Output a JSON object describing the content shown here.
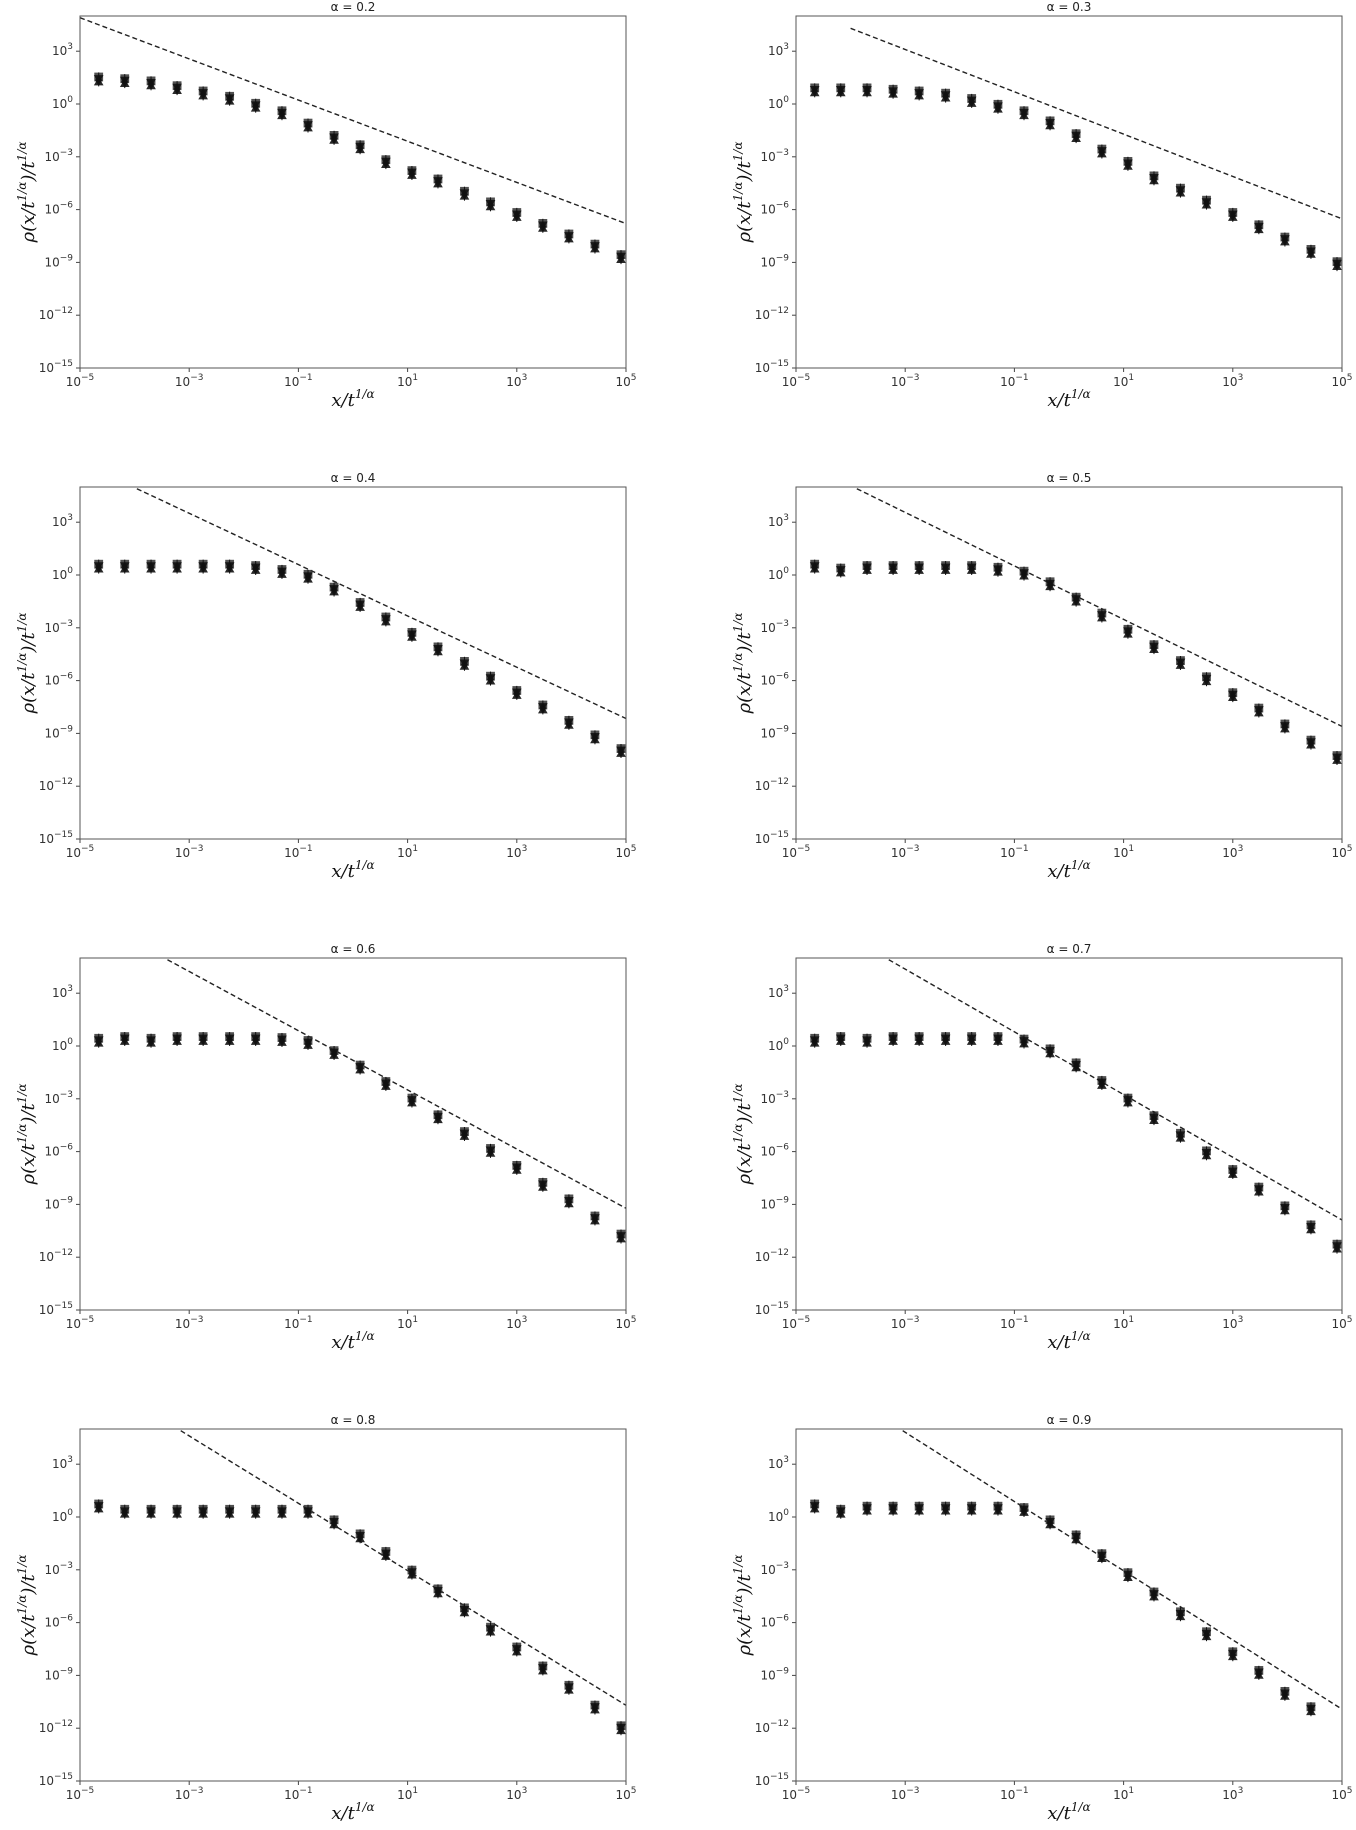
{
  "chart_data": [
    {
      "type": "scatter",
      "title": "α = 0.2",
      "xlabel": "x/t^{1/α}",
      "ylabel": "ρ(x/t^{1/α})/t^{1/α}",
      "xscale": "log",
      "yscale": "log",
      "xlim": [
        1e-05,
        100000.0
      ],
      "ylim": [
        1e-15,
        100000.0
      ],
      "xticks": [
        "10^{-5}",
        "10^{-3}",
        "10^{-1}",
        "10^{1}",
        "10^{3}",
        "10^{5}"
      ],
      "yticks": [
        "10^{-15}",
        "10^{-12}",
        "10^{-9}",
        "10^{-6}",
        "10^{-3}",
        "10^{0}",
        "10^{3}"
      ],
      "grid": false,
      "reference_line": {
        "style": "dashed",
        "x": [
          1e-05,
          100000.0
        ],
        "y": [
          80000,
          1.6e-07
        ]
      },
      "points": {
        "x": [
          2.2e-05,
          6.6e-05,
          0.0002,
          0.0006,
          0.0018,
          0.0055,
          0.0165,
          0.05,
          0.15,
          0.45,
          1.35,
          4,
          12,
          36,
          110,
          330,
          1000,
          3000,
          9000,
          27000,
          81000
        ],
        "y": [
          25,
          20,
          15,
          8,
          4,
          2,
          0.8,
          0.3,
          0.06,
          0.012,
          0.0035,
          0.0005,
          0.00012,
          4e-05,
          8e-06,
          2e-06,
          5e-07,
          1.2e-07,
          3e-08,
          8e-09,
          2e-09
        ]
      }
    },
    {
      "type": "scatter",
      "title": "α = 0.3",
      "xlabel": "x/t^{1/α}",
      "ylabel": "ρ(x/t^{1/α})/t^{1/α}",
      "xscale": "log",
      "yscale": "log",
      "xlim": [
        1e-05,
        100000.0
      ],
      "ylim": [
        1e-15,
        100000.0
      ],
      "xticks": [
        "10^{-5}",
        "10^{-3}",
        "10^{-1}",
        "10^{1}",
        "10^{3}",
        "10^{5}"
      ],
      "yticks": [
        "10^{-15}",
        "10^{-12}",
        "10^{-9}",
        "10^{-6}",
        "10^{-3}",
        "10^{0}",
        "10^{3}"
      ],
      "grid": false,
      "reference_line": {
        "style": "dashed",
        "x": [
          0.0001,
          100000.0
        ],
        "y": [
          20000,
          3e-07
        ]
      },
      "points": {
        "x": [
          2.2e-05,
          6.6e-05,
          0.0002,
          0.0006,
          0.0018,
          0.0055,
          0.0165,
          0.05,
          0.15,
          0.45,
          1.35,
          4,
          12,
          36,
          110,
          330,
          1000,
          3000,
          9000,
          27000,
          81000
        ],
        "y": [
          6,
          6,
          6,
          5,
          4,
          3,
          1.5,
          0.7,
          0.3,
          0.08,
          0.015,
          0.002,
          0.0004,
          6e-05,
          1.2e-05,
          2.5e-06,
          5e-07,
          1e-07,
          2e-08,
          4e-09,
          8e-10
        ]
      }
    },
    {
      "type": "scatter",
      "title": "α = 0.4",
      "xlabel": "x/t^{1/α}",
      "ylabel": "ρ(x/t^{1/α})/t^{1/α}",
      "xscale": "log",
      "yscale": "log",
      "xlim": [
        1e-05,
        100000.0
      ],
      "ylim": [
        1e-15,
        100000.0
      ],
      "xticks": [
        "10^{-5}",
        "10^{-3}",
        "10^{-1}",
        "10^{1}",
        "10^{3}",
        "10^{5}"
      ],
      "yticks": [
        "10^{-15}",
        "10^{-12}",
        "10^{-9}",
        "10^{-6}",
        "10^{-3}",
        "10^{0}",
        "10^{3}"
      ],
      "grid": false,
      "reference_line": {
        "style": "dashed",
        "x": [
          0.00011,
          100000.0
        ],
        "y": [
          80000,
          7e-09
        ]
      },
      "points": {
        "x": [
          2.2e-05,
          6.6e-05,
          0.0002,
          0.0006,
          0.0018,
          0.0055,
          0.0165,
          0.05,
          0.15,
          0.45,
          1.35,
          4,
          12,
          36,
          110,
          330,
          1000,
          3000,
          9000,
          27000,
          81000
        ],
        "y": [
          3,
          3,
          3,
          3,
          3,
          3,
          2.5,
          1.5,
          0.8,
          0.15,
          0.02,
          0.003,
          0.0004,
          6e-05,
          9e-06,
          1.3e-06,
          2e-07,
          3e-08,
          4e-09,
          6e-10,
          1e-10
        ]
      }
    },
    {
      "type": "scatter",
      "title": "α = 0.5",
      "xlabel": "x/t^{1/α}",
      "ylabel": "ρ(x/t^{1/α})/t^{1/α}",
      "xscale": "log",
      "yscale": "log",
      "xlim": [
        1e-05,
        100000.0
      ],
      "ylim": [
        1e-15,
        100000.0
      ],
      "xticks": [
        "10^{-5}",
        "10^{-3}",
        "10^{-1}",
        "10^{1}",
        "10^{3}",
        "10^{5}"
      ],
      "yticks": [
        "10^{-15}",
        "10^{-12}",
        "10^{-9}",
        "10^{-6}",
        "10^{-3}",
        "10^{0}",
        "10^{3}"
      ],
      "grid": false,
      "reference_line": {
        "style": "dashed",
        "x": [
          0.00013,
          100000.0
        ],
        "y": [
          80000,
          2.5e-09
        ]
      },
      "points": {
        "x": [
          2.2e-05,
          6.6e-05,
          0.0002,
          0.0006,
          0.0018,
          0.0055,
          0.0165,
          0.05,
          0.15,
          0.45,
          1.35,
          4,
          12,
          36,
          110,
          330,
          1000,
          3000,
          9000,
          27000,
          81000
        ],
        "y": [
          3,
          1.8,
          2.5,
          2.5,
          2.5,
          2.5,
          2.5,
          2,
          1.2,
          0.3,
          0.04,
          0.005,
          0.0006,
          8e-05,
          1e-05,
          1.2e-06,
          1.5e-07,
          2e-08,
          2.5e-09,
          3e-10,
          4e-11
        ]
      }
    },
    {
      "type": "scatter",
      "title": "α = 0.6",
      "xlabel": "x/t^{1/α}",
      "ylabel": "ρ(x/t^{1/α})/t^{1/α}",
      "xscale": "log",
      "yscale": "log",
      "xlim": [
        1e-05,
        100000.0
      ],
      "ylim": [
        1e-15,
        100000.0
      ],
      "xticks": [
        "10^{-5}",
        "10^{-3}",
        "10^{-1}",
        "10^{1}",
        "10^{3}",
        "10^{5}"
      ],
      "yticks": [
        "10^{-15}",
        "10^{-12}",
        "10^{-9}",
        "10^{-6}",
        "10^{-3}",
        "10^{0}",
        "10^{3}"
      ],
      "grid": false,
      "reference_line": {
        "style": "dashed",
        "x": [
          0.0004,
          100000.0
        ],
        "y": [
          80000,
          6e-10
        ]
      },
      "points": {
        "x": [
          2.2e-05,
          6.6e-05,
          0.0002,
          0.0006,
          0.0018,
          0.0055,
          0.0165,
          0.05,
          0.15,
          0.45,
          1.35,
          4,
          12,
          36,
          110,
          330,
          1000,
          3000,
          9000,
          27000,
          81000
        ],
        "y": [
          2,
          2.5,
          2,
          2.5,
          2.5,
          2.5,
          2.5,
          2.2,
          1.5,
          0.4,
          0.06,
          0.007,
          0.0008,
          9e-05,
          1e-05,
          1.1e-06,
          1.2e-07,
          1.3e-08,
          1.5e-09,
          1.6e-10,
          1.5e-11
        ]
      }
    },
    {
      "type": "scatter",
      "title": "α = 0.7",
      "xlabel": "x/t^{1/α}",
      "ylabel": "ρ(x/t^{1/α})/t^{1/α}",
      "xscale": "log",
      "yscale": "log",
      "xlim": [
        1e-05,
        100000.0
      ],
      "ylim": [
        1e-15,
        100000.0
      ],
      "xticks": [
        "10^{-5}",
        "10^{-3}",
        "10^{-1}",
        "10^{1}",
        "10^{3}",
        "10^{5}"
      ],
      "yticks": [
        "10^{-15}",
        "10^{-12}",
        "10^{-9}",
        "10^{-6}",
        "10^{-3}",
        "10^{0}",
        "10^{3}"
      ],
      "grid": false,
      "reference_line": {
        "style": "dashed",
        "x": [
          0.0005,
          100000.0
        ],
        "y": [
          80000,
          1.3e-10
        ]
      },
      "points": {
        "x": [
          2.2e-05,
          6.6e-05,
          0.0002,
          0.0006,
          0.0018,
          0.0055,
          0.0165,
          0.05,
          0.15,
          0.45,
          1.35,
          4,
          12,
          36,
          110,
          330,
          1000,
          3000,
          9000,
          27000,
          81000
        ],
        "y": [
          2,
          2.5,
          2,
          2.5,
          2.5,
          2.5,
          2.5,
          2.5,
          1.8,
          0.5,
          0.08,
          0.008,
          0.0008,
          8e-05,
          8e-06,
          8e-07,
          7e-08,
          7e-09,
          6e-10,
          5e-11,
          4e-12
        ]
      }
    },
    {
      "type": "scatter",
      "title": "α = 0.8",
      "xlabel": "x/t^{1/α}",
      "ylabel": "ρ(x/t^{1/α})/t^{1/α}",
      "xscale": "log",
      "yscale": "log",
      "xlim": [
        1e-05,
        100000.0
      ],
      "ylim": [
        1e-15,
        100000.0
      ],
      "xticks": [
        "10^{-5}",
        "10^{-3}",
        "10^{-1}",
        "10^{1}",
        "10^{3}",
        "10^{5}"
      ],
      "yticks": [
        "10^{-15}",
        "10^{-12}",
        "10^{-9}",
        "10^{-6}",
        "10^{-3}",
        "10^{0}",
        "10^{3}"
      ],
      "grid": false,
      "reference_line": {
        "style": "dashed",
        "x": [
          0.0007,
          100000.0
        ],
        "y": [
          80000,
          2e-11
        ]
      },
      "points": {
        "x": [
          2.2e-05,
          6.6e-05,
          0.0002,
          0.0006,
          0.0018,
          0.0055,
          0.0165,
          0.05,
          0.15,
          0.45,
          1.35,
          4,
          12,
          36,
          110,
          330,
          1000,
          3000,
          9000,
          27000,
          81000
        ],
        "y": [
          4,
          2,
          2,
          2,
          2,
          2,
          2,
          2,
          2,
          0.5,
          0.08,
          0.008,
          0.0007,
          6e-05,
          5e-06,
          4e-07,
          3e-08,
          2.5e-09,
          2e-10,
          1.5e-11,
          1e-12
        ]
      }
    },
    {
      "type": "scatter",
      "title": "α = 0.9",
      "xlabel": "x/t^{1/α}",
      "ylabel": "ρ(x/t^{1/α})/t^{1/α}",
      "xscale": "log",
      "yscale": "log",
      "xlim": [
        1e-05,
        100000.0
      ],
      "ylim": [
        1e-15,
        100000.0
      ],
      "xticks": [
        "10^{-5}",
        "10^{-3}",
        "10^{-1}",
        "10^{1}",
        "10^{3}",
        "10^{5}"
      ],
      "yticks": [
        "10^{-15}",
        "10^{-12}",
        "10^{-9}",
        "10^{-6}",
        "10^{-3}",
        "10^{0}",
        "10^{3}"
      ],
      "grid": false,
      "reference_line": {
        "style": "dashed",
        "x": [
          0.0009,
          100000.0
        ],
        "y": [
          80000,
          1.2e-11
        ]
      },
      "points": {
        "x": [
          2.2e-05,
          6.6e-05,
          0.0002,
          0.0006,
          0.0018,
          0.0055,
          0.0165,
          0.05,
          0.15,
          0.45,
          1.35,
          4,
          12,
          36,
          110,
          330,
          1000,
          3000,
          9000,
          27000
        ],
        "y": [
          4,
          2,
          3,
          3,
          3,
          3,
          3,
          3,
          2.5,
          0.5,
          0.07,
          0.006,
          0.0005,
          4e-05,
          3e-06,
          2.2e-07,
          1.6e-08,
          1.4e-09,
          9e-11,
          1.2e-11
        ]
      }
    }
  ]
}
